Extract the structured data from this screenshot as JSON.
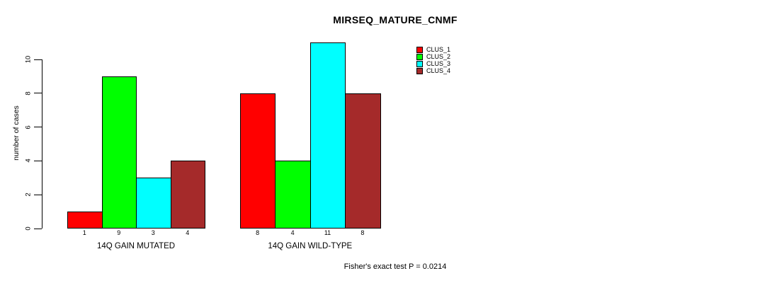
{
  "chart_data": {
    "type": "bar",
    "title": "MIRSEQ_MATURE_CNMF",
    "ylabel": "number of cases",
    "xlabel": "",
    "ylim": [
      0,
      11.4
    ],
    "yticks": [
      0,
      2,
      4,
      6,
      8,
      10
    ],
    "grid": false,
    "legend_position": "top-right-outside",
    "categories": [
      "14Q GAIN MUTATED",
      "14Q GAIN WILD-TYPE"
    ],
    "series": [
      {
        "name": "CLUS_1",
        "color": "#FF0000",
        "values": [
          1,
          8
        ]
      },
      {
        "name": "CLUS_2",
        "color": "#00FF00",
        "values": [
          9,
          4
        ]
      },
      {
        "name": "CLUS_3",
        "color": "#00FFFF",
        "values": [
          3,
          11
        ]
      },
      {
        "name": "CLUS_4",
        "color": "#A52A2A",
        "values": [
          4,
          8
        ]
      }
    ],
    "bar_value_labels": [
      [
        1,
        9,
        3,
        4
      ],
      [
        8,
        4,
        11,
        8
      ]
    ],
    "annotation": "Fisher's exact test P = 0.0214"
  },
  "colors": {
    "background": "#FFFFFF",
    "axis": "#000000",
    "text": "#000000"
  }
}
